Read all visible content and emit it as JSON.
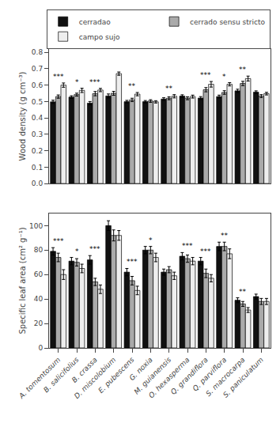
{
  "chart_data": [
    {
      "type": "bar",
      "categories": [
        "A. tomentosum",
        "B. salicifolius",
        "B. crassa",
        "D. miscolobium",
        "E. pubescens",
        "G. noxia",
        "M. guianensis",
        "O. hexasperma",
        "Q. grandiflora",
        "Q. parviflora",
        "S. macrocarpa",
        "S. paniculatum"
      ],
      "series": [
        {
          "name": "cerradao",
          "color": "#111111",
          "values": [
            0.498,
            0.527,
            0.49,
            0.534,
            0.499,
            0.499,
            0.515,
            0.533,
            0.521,
            0.53,
            0.565,
            0.557
          ],
          "errors": [
            0.01,
            0.008,
            0.01,
            0.012,
            0.008,
            0.007,
            0.008,
            0.008,
            0.009,
            0.009,
            0.01,
            0.008
          ]
        },
        {
          "name": "cerrado sensu stricto",
          "color": "#aaaaaa",
          "values": [
            0.53,
            0.542,
            0.548,
            0.55,
            0.51,
            0.503,
            0.52,
            0.52,
            0.572,
            0.555,
            0.61,
            0.533
          ],
          "errors": [
            0.01,
            0.009,
            0.013,
            0.012,
            0.01,
            0.008,
            0.009,
            0.009,
            0.013,
            0.011,
            0.013,
            0.009
          ]
        },
        {
          "name": "campo sujo",
          "color": "#eeeeee",
          "values": [
            0.6,
            0.568,
            0.57,
            0.67,
            0.545,
            0.498,
            0.532,
            0.53,
            0.605,
            0.605,
            0.64,
            0.548
          ],
          "errors": [
            0.013,
            0.013,
            0.01,
            0.01,
            0.01,
            0.007,
            0.01,
            0.009,
            0.017,
            0.01,
            0.015,
            0.008
          ]
        }
      ],
      "ylabel": "Wood density (g cm⁻³)",
      "ylim": [
        0.0,
        0.82
      ],
      "yticks": [
        {
          "value": 0,
          "label": "0.0"
        },
        0.1,
        0.2,
        0.3,
        0.4,
        0.5,
        0.6,
        0.7,
        0.8
      ],
      "grid": false,
      "legend": "upper right",
      "tick_labels": "y",
      "annotations": [
        {
          "category": "A. tomentosum",
          "text": "***"
        },
        {
          "category": "B. salicifolius",
          "text": "*"
        },
        {
          "category": "B. crassa",
          "text": "***"
        },
        {
          "category": "E. pubescens",
          "text": "**"
        },
        {
          "category": "M. guianensis",
          "text": "**"
        },
        {
          "category": "Q. grandiflora",
          "text": "***"
        },
        {
          "category": "Q. parviflora",
          "text": "*"
        },
        {
          "category": "S. macrocarpa",
          "text": "**"
        }
      ]
    },
    {
      "type": "bar",
      "categories": [
        "A. tomentosum",
        "B. salicifolius",
        "B. crassa",
        "D. miscolobium",
        "E. pubescens",
        "G. noxia",
        "M. guianensis",
        "O. hexasperma",
        "Q. grandiflora",
        "Q. parviflora",
        "S. macrocarpa",
        "S. paniculatum"
      ],
      "series": [
        {
          "color": "#111111",
          "values": [
            79,
            71,
            72,
            100,
            62,
            80,
            62,
            75,
            71,
            83,
            39,
            42
          ],
          "errors": [
            3.0,
            3.0,
            3.5,
            4.0,
            3.0,
            3.0,
            2.5,
            3.0,
            3.0,
            3.5,
            2.0,
            2.0
          ]
        },
        {
          "color": "#aaaaaa",
          "values": [
            74,
            70,
            54,
            92,
            55,
            80,
            64,
            73,
            61,
            83,
            36,
            38
          ],
          "errors": [
            3.5,
            3.0,
            3.0,
            4.5,
            3.5,
            3.0,
            2.5,
            3.0,
            3.5,
            3.5,
            2.0,
            2.5
          ]
        },
        {
          "color": "#eeeeee",
          "values": [
            60,
            65,
            48,
            92,
            47,
            74,
            59,
            71,
            57,
            77,
            31,
            38
          ],
          "errors": [
            4.0,
            3.5,
            3.5,
            4.0,
            3.5,
            3.5,
            3.0,
            3.0,
            3.0,
            4.0,
            2.0,
            2.5
          ]
        }
      ],
      "ylabel": "Specific leaf area (cm² g⁻¹)",
      "ylim": [
        0,
        110
      ],
      "yticks": [
        0,
        20,
        40,
        60,
        80,
        100
      ],
      "grid": false,
      "annotations": [
        {
          "category": "A. tomentosum",
          "text": "***"
        },
        {
          "category": "B. salicifolius",
          "text": "*"
        },
        {
          "category": "B. crassa",
          "text": "***"
        },
        {
          "category": "E. pubescens",
          "text": "***"
        },
        {
          "category": "G. noxia",
          "text": "*"
        },
        {
          "category": "O. hexasperma",
          "text": "***"
        },
        {
          "category": "Q. grandiflora",
          "text": "***"
        },
        {
          "category": "Q. parviflora",
          "text": "**"
        },
        {
          "category": "S. macrocarpa",
          "text": "**"
        }
      ]
    }
  ]
}
